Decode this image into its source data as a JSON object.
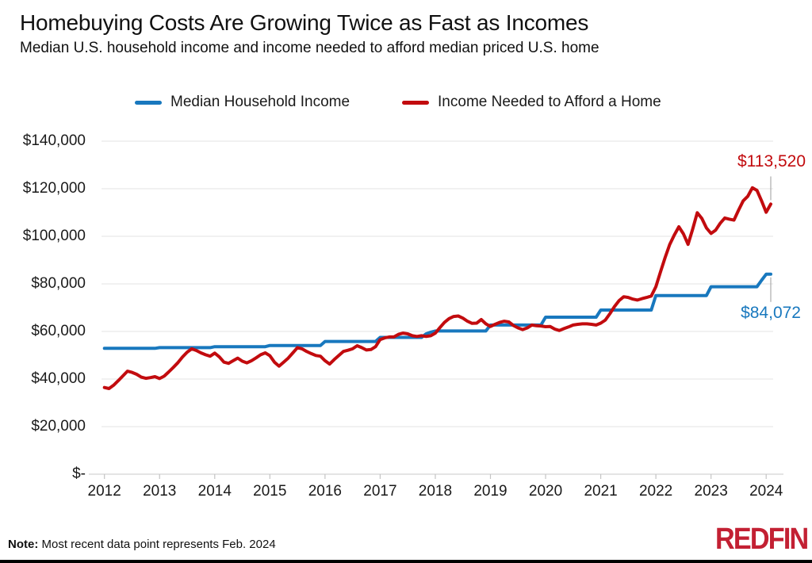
{
  "header": {
    "title": "Homebuying Costs Are Growing Twice as Fast as Incomes",
    "subtitle": "Median U.S. household income and income needed to afford median priced U.S. home"
  },
  "legend": {
    "items": [
      {
        "label": "Median Household Income",
        "color": "#1878BE"
      },
      {
        "label": "Income Needed to Afford a Home",
        "color": "#C20B0E"
      }
    ]
  },
  "annotations": {
    "red_label": "$113,520",
    "blue_label": "$84,072"
  },
  "note": {
    "bold": "Note:",
    "text": " Most recent data point represents Feb. 2024"
  },
  "logo": {
    "text": "REDFIN",
    "color": "#C32033"
  },
  "chart_data": {
    "type": "line",
    "x_frequency": "monthly",
    "x_start": "2012-01",
    "x_end": "2024-02",
    "x_tick_labels": [
      "2012",
      "2013",
      "2014",
      "2015",
      "2016",
      "2017",
      "2018",
      "2019",
      "2020",
      "2021",
      "2022",
      "2023",
      "2024"
    ],
    "y_ticks": [
      {
        "label": "$140,000",
        "value": 140000
      },
      {
        "label": "$120,000",
        "value": 120000
      },
      {
        "label": "$100,000",
        "value": 100000
      },
      {
        "label": "$80,000",
        "value": 80000
      },
      {
        "label": "$60,000",
        "value": 60000
      },
      {
        "label": "$40,000",
        "value": 40000
      },
      {
        "label": "$20,000",
        "value": 20000
      },
      {
        "label": "$-",
        "value": 0
      }
    ],
    "ylim": [
      0,
      140000
    ],
    "grid": "horizontal",
    "legend_position": "top",
    "series": [
      {
        "name": "Median Household Income",
        "color": "#1878BE",
        "end_value": 84072,
        "values": [
          52900,
          52900,
          52900,
          52900,
          52900,
          52900,
          52900,
          52900,
          52900,
          52900,
          52900,
          52900,
          53200,
          53200,
          53200,
          53200,
          53200,
          53200,
          53200,
          53200,
          53200,
          53200,
          53200,
          53200,
          53600,
          53600,
          53600,
          53600,
          53600,
          53600,
          53600,
          53600,
          53600,
          53600,
          53600,
          53600,
          54100,
          54100,
          54100,
          54100,
          54100,
          54100,
          54100,
          54100,
          54100,
          54100,
          54100,
          54100,
          55800,
          55800,
          55800,
          55800,
          55800,
          55800,
          55800,
          55800,
          55800,
          55800,
          55800,
          55800,
          57500,
          57500,
          57500,
          57500,
          57500,
          57500,
          57500,
          57500,
          57500,
          57500,
          59000,
          59700,
          60200,
          60200,
          60200,
          60200,
          60200,
          60200,
          60200,
          60200,
          60200,
          60200,
          60200,
          60200,
          62700,
          62700,
          62700,
          62700,
          62700,
          62700,
          62700,
          62700,
          62700,
          62700,
          62700,
          62700,
          66000,
          66000,
          66000,
          66000,
          66000,
          66000,
          66000,
          66000,
          66000,
          66000,
          66000,
          66000,
          69000,
          69000,
          69000,
          69000,
          69000,
          69000,
          69000,
          69000,
          69000,
          69000,
          69000,
          69000,
          75100,
          75100,
          75100,
          75100,
          75100,
          75100,
          75100,
          75100,
          75100,
          75100,
          75100,
          75100,
          78800,
          78800,
          78800,
          78800,
          78800,
          78800,
          78800,
          78800,
          78800,
          78800,
          78800,
          81500,
          84072,
          84072
        ]
      },
      {
        "name": "Income Needed to Afford a Home",
        "color": "#C20B0E",
        "end_value": 113520,
        "values": [
          36424,
          36000,
          37400,
          39300,
          41300,
          43300,
          42800,
          42000,
          40800,
          40300,
          40600,
          41000,
          40200,
          41200,
          43000,
          44900,
          46900,
          49300,
          51300,
          52700,
          52000,
          51000,
          50200,
          49600,
          50900,
          49300,
          47100,
          46600,
          47700,
          48800,
          47500,
          46800,
          47700,
          48900,
          50200,
          51000,
          49800,
          47100,
          45400,
          47100,
          48800,
          51000,
          53200,
          52700,
          51600,
          50700,
          49900,
          49600,
          47700,
          46300,
          48200,
          49900,
          51600,
          52100,
          52700,
          54000,
          53200,
          52200,
          52400,
          53600,
          56600,
          57300,
          57700,
          57700,
          58800,
          59300,
          59000,
          58200,
          57900,
          58200,
          57900,
          58200,
          59300,
          61600,
          63800,
          65400,
          66300,
          66500,
          65600,
          64300,
          63400,
          63500,
          65000,
          63200,
          62100,
          63000,
          63800,
          64300,
          64000,
          62500,
          61500,
          60800,
          61500,
          62700,
          62400,
          62300,
          62000,
          62100,
          61000,
          60400,
          61200,
          61900,
          62700,
          63000,
          63200,
          63200,
          63000,
          62700,
          63500,
          64800,
          67500,
          70500,
          73000,
          74600,
          74300,
          73600,
          73200,
          73800,
          74300,
          74900,
          78800,
          85000,
          91000,
          96500,
          100500,
          104000,
          101000,
          96600,
          103000,
          109900,
          107500,
          103500,
          101200,
          102600,
          105500,
          107700,
          107200,
          106800,
          111000,
          114900,
          116800,
          120400,
          119300,
          114900,
          110100,
          113520
        ]
      }
    ]
  }
}
